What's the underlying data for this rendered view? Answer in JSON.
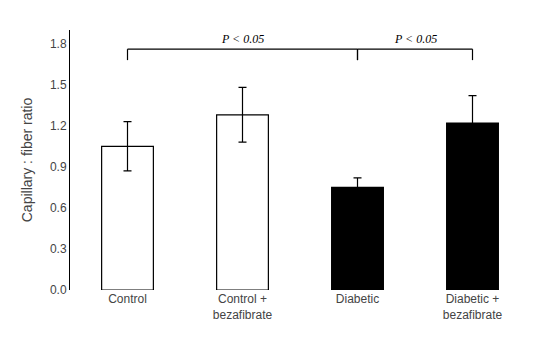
{
  "chart_data": {
    "type": "bar",
    "categories": [
      "Control",
      "Control +\nbezafibrate",
      "Diabetic",
      "Diabetic +\nbezafibrate"
    ],
    "values": [
      1.05,
      1.28,
      0.75,
      1.22
    ],
    "errors": [
      0.18,
      0.2,
      0.07,
      0.2
    ],
    "colors": [
      "white",
      "white",
      "black",
      "black"
    ],
    "ylabel": "Capillary : fiber ratio",
    "ylim": [
      0,
      1.9
    ],
    "yticks": [
      {
        "value": 0,
        "label": "0.0"
      },
      0.3,
      0.6,
      0.9,
      1.2,
      1.5,
      1.8
    ],
    "grid": false,
    "annotations": [
      {
        "text": "P < 0.05",
        "from": "Control",
        "to": "Diabetic",
        "y": 1.76,
        "drop": 0.08
      },
      {
        "text": "P < 0.05",
        "from": "Diabetic",
        "to": "Diabetic +\nbezafibrate",
        "y": 1.76,
        "drop": 0.08
      }
    ]
  }
}
